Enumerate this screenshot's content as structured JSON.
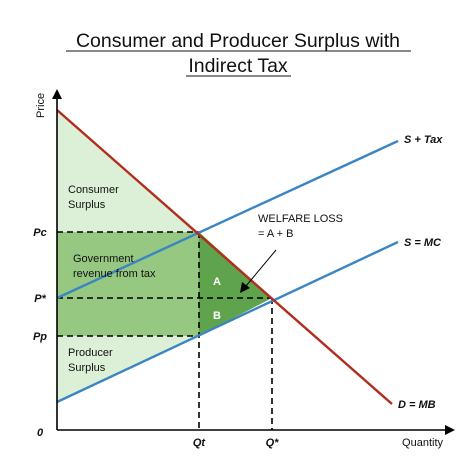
{
  "title_line1": "Consumer and Producer Surplus with",
  "title_line2": "Indirect Tax",
  "axes": {
    "y_label": "Price",
    "x_label": "Quantity",
    "origin_label": "0"
  },
  "price_ticks": {
    "pc": "Pc",
    "pstar": "P*",
    "pp": "Pp"
  },
  "quantity_ticks": {
    "qt": "Qt",
    "qstar": "Q*"
  },
  "curves": {
    "supply_tax": "S + Tax",
    "supply": "S = MC",
    "demand": "D = MB"
  },
  "regions": {
    "consumer_surplus": [
      "Consumer",
      "Surplus"
    ],
    "government_revenue": [
      "Government",
      "revenue from tax"
    ],
    "producer_surplus": [
      "Producer",
      "Surplus"
    ],
    "a": "A",
    "b": "B",
    "welfare_loss": [
      "WELFARE LOSS",
      "= A + B"
    ]
  },
  "colors": {
    "demand": "#b22d1f",
    "supply": "#3a85c2",
    "consumer_fill": "#dcefd7",
    "government_fill": "#96c882",
    "producer_fill": "#dcefd7",
    "deadweight_fill": "#5fa44c",
    "axis": "#000000"
  }
}
